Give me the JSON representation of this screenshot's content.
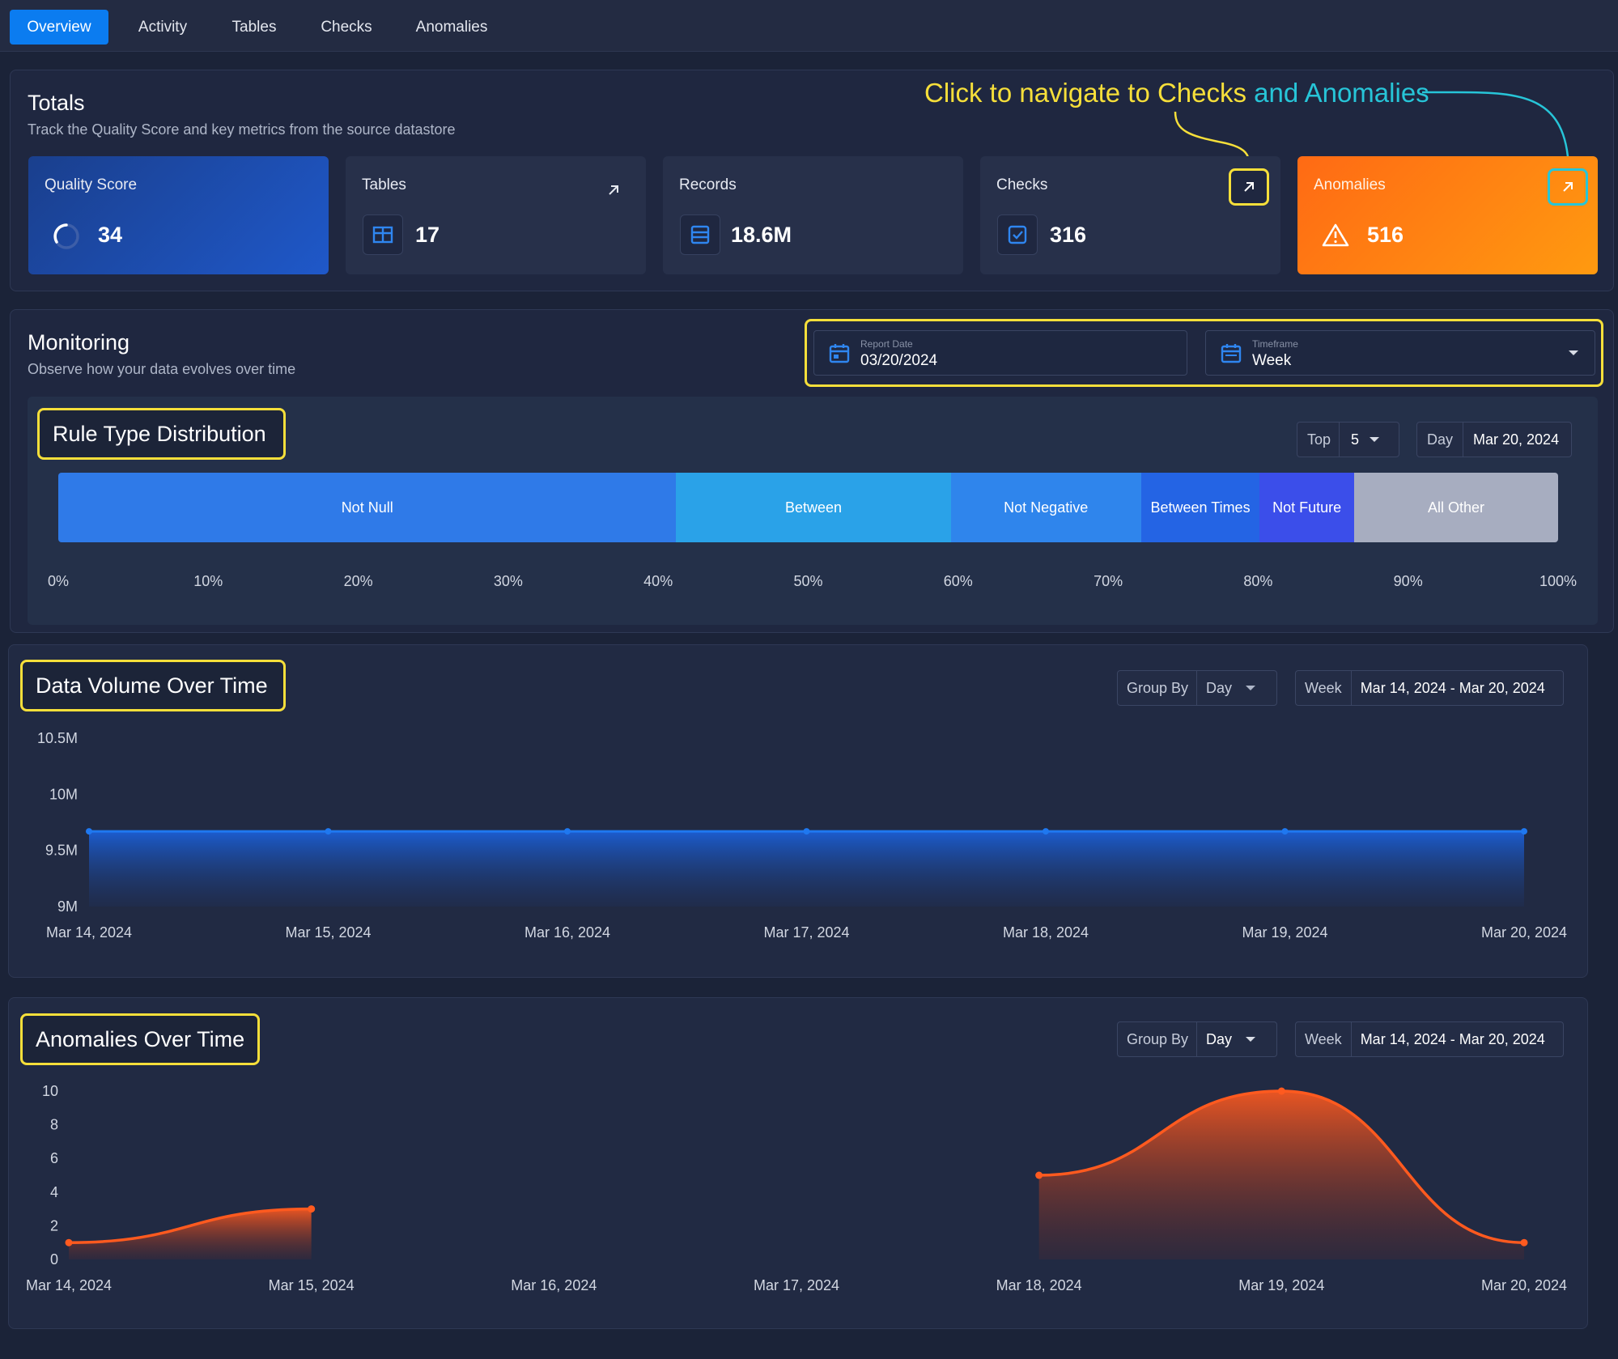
{
  "nav": {
    "tabs": [
      {
        "label": "Overview",
        "active": true
      },
      {
        "label": "Activity",
        "active": false
      },
      {
        "label": "Tables",
        "active": false
      },
      {
        "label": "Checks",
        "active": false
      },
      {
        "label": "Anomalies",
        "active": false
      }
    ]
  },
  "totals": {
    "title": "Totals",
    "subtitle": "Track the Quality Score and key metrics from the source datastore",
    "annotation": {
      "part1": "Click to navigate to Checks",
      "part2": " and Anomalies"
    },
    "cards": {
      "quality_score": {
        "label": "Quality Score",
        "value": "34",
        "icon": "progress-ring-icon"
      },
      "tables": {
        "label": "Tables",
        "value": "17",
        "icon": "table-icon"
      },
      "records": {
        "label": "Records",
        "value": "18.6M",
        "icon": "database-icon"
      },
      "checks": {
        "label": "Checks",
        "value": "316",
        "icon": "checkbox-icon"
      },
      "anomalies": {
        "label": "Anomalies",
        "value": "516",
        "icon": "warning-icon"
      }
    },
    "colors": {
      "accent": "#0b7cf0",
      "anomaly": "#ff7a12",
      "highlight": "#f6df3a",
      "highlight_alt": "#27c5d8"
    }
  },
  "monitoring": {
    "title": "Monitoring",
    "subtitle": "Observe how your data evolves over time",
    "report_date": {
      "label": "Report Date",
      "value": "03/20/2024"
    },
    "timeframe": {
      "label": "Timeframe",
      "value": "Week"
    }
  },
  "rule_dist": {
    "title": "Rule Type Distribution",
    "top_label": "Top",
    "top_value": "5",
    "period_label": "Day",
    "period_value": "Mar 20, 2024"
  },
  "volume": {
    "title": "Data Volume Over Time",
    "group_by_label": "Group By",
    "group_by_value": "Day",
    "period_label": "Week",
    "period_value": "Mar 14, 2024 - Mar 20, 2024"
  },
  "anomalies_time": {
    "title": "Anomalies Over Time",
    "group_by_label": "Group By",
    "group_by_value": "Day",
    "period_label": "Week",
    "period_value": "Mar 14, 2024 - Mar 20, 2024"
  },
  "chart_data": [
    {
      "type": "bar",
      "orientation": "horizontal-stacked-percent",
      "segments": [
        {
          "name": "Not Null",
          "value": 41.2,
          "color": "#2f7ae8"
        },
        {
          "name": "Between",
          "value": 18.3,
          "color": "#2aa2e8"
        },
        {
          "name": "Not Negative",
          "value": 12.7,
          "color": "#2f85ec"
        },
        {
          "name": "Between Times",
          "value": 7.9,
          "color": "#2464e4"
        },
        {
          "name": "Not Future",
          "value": 6.3,
          "color": "#3b4eea"
        },
        {
          "name": "All Other",
          "value": 13.6,
          "color": "#a7adc0"
        }
      ],
      "xticks": [
        "0%",
        "10%",
        "20%",
        "30%",
        "40%",
        "50%",
        "60%",
        "70%",
        "80%",
        "90%",
        "100%"
      ],
      "xlim": [
        0,
        100
      ]
    },
    {
      "type": "area",
      "x": [
        "Mar 14, 2024",
        "Mar 15, 2024",
        "Mar 16, 2024",
        "Mar 17, 2024",
        "Mar 18, 2024",
        "Mar 19, 2024",
        "Mar 20, 2024"
      ],
      "values": [
        9.67,
        9.67,
        9.67,
        9.67,
        9.67,
        9.67,
        9.67
      ],
      "yticks": [
        "10.5M",
        "10M",
        "9.5M",
        "9M"
      ],
      "ylim": [
        9,
        10.5
      ],
      "color": "#1f78f0"
    },
    {
      "type": "area",
      "x": [
        "Mar 14, 2024",
        "Mar 15, 2024",
        "Mar 16, 2024",
        "Mar 17, 2024",
        "Mar 18, 2024",
        "Mar 19, 2024",
        "Mar 20, 2024"
      ],
      "segments": [
        [
          [
            0,
            1
          ],
          [
            1,
            3
          ]
        ],
        [
          [
            4,
            5
          ],
          [
            5,
            10
          ],
          [
            6,
            1
          ]
        ]
      ],
      "yticks": [
        "10",
        "8",
        "6",
        "4",
        "2",
        "0"
      ],
      "ylim": [
        0,
        10
      ],
      "color": "#ff5a1f"
    }
  ]
}
